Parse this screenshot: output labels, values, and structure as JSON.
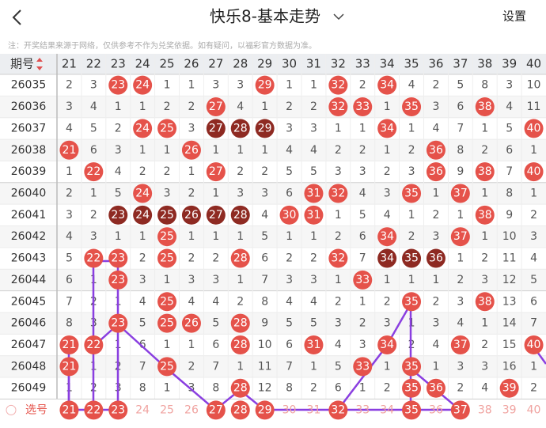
{
  "header": {
    "title": "快乐8-基本走势",
    "settings": "设置"
  },
  "notice": "注：开奖结果来源于网络，仅供参考不作为兑奖依据。如有疑问，以福彩官方数据为准。",
  "table": {
    "corner": "期号",
    "columns": [
      21,
      22,
      23,
      24,
      25,
      26,
      27,
      28,
      29,
      30,
      31,
      32,
      33,
      34,
      35,
      36,
      37,
      38,
      39,
      40
    ],
    "rows": [
      {
        "issue": "26035",
        "cells": [
          2,
          3,
          23,
          24,
          1,
          1,
          3,
          3,
          29,
          1,
          1,
          32,
          2,
          34,
          4,
          2,
          5,
          8,
          3,
          10
        ]
      },
      {
        "issue": "26036",
        "cells": [
          3,
          4,
          1,
          1,
          2,
          2,
          27,
          4,
          1,
          2,
          2,
          32,
          33,
          1,
          35,
          3,
          6,
          38,
          4,
          11
        ]
      },
      {
        "issue": "26037",
        "cells": [
          4,
          5,
          2,
          24,
          25,
          3,
          27,
          28,
          29,
          3,
          3,
          1,
          1,
          34,
          1,
          4,
          7,
          1,
          5,
          40
        ]
      },
      {
        "issue": "26038",
        "cells": [
          21,
          6,
          3,
          1,
          1,
          26,
          1,
          1,
          1,
          4,
          4,
          2,
          2,
          1,
          2,
          36,
          8,
          2,
          6,
          1
        ]
      },
      {
        "issue": "26039",
        "cells": [
          1,
          22,
          4,
          2,
          2,
          1,
          27,
          2,
          2,
          5,
          5,
          3,
          3,
          2,
          3,
          36,
          9,
          38,
          7,
          40
        ]
      },
      {
        "issue": "26040",
        "cells": [
          2,
          1,
          5,
          24,
          3,
          2,
          1,
          3,
          3,
          6,
          31,
          32,
          4,
          3,
          35,
          1,
          37,
          1,
          8,
          1
        ]
      },
      {
        "issue": "26041",
        "cells": [
          3,
          2,
          23,
          24,
          25,
          26,
          27,
          28,
          4,
          30,
          31,
          1,
          5,
          4,
          1,
          2,
          1,
          38,
          9,
          2
        ]
      },
      {
        "issue": "26042",
        "cells": [
          4,
          3,
          1,
          1,
          25,
          1,
          1,
          1,
          5,
          1,
          1,
          2,
          6,
          34,
          2,
          3,
          37,
          1,
          10,
          3
        ]
      },
      {
        "issue": "26043",
        "cells": [
          5,
          22,
          23,
          2,
          25,
          2,
          2,
          28,
          6,
          2,
          2,
          32,
          7,
          34,
          35,
          36,
          1,
          2,
          11,
          4
        ]
      },
      {
        "issue": "26044",
        "cells": [
          6,
          1,
          23,
          3,
          1,
          3,
          3,
          1,
          7,
          3,
          3,
          1,
          33,
          1,
          1,
          1,
          2,
          3,
          12,
          5
        ]
      },
      {
        "issue": "26045",
        "cells": [
          7,
          2,
          1,
          4,
          25,
          4,
          4,
          2,
          8,
          4,
          4,
          2,
          1,
          2,
          35,
          2,
          3,
          38,
          13,
          6
        ]
      },
      {
        "issue": "26046",
        "cells": [
          8,
          3,
          23,
          5,
          25,
          26,
          5,
          28,
          9,
          5,
          5,
          3,
          2,
          3,
          1,
          3,
          4,
          1,
          14,
          7
        ]
      },
      {
        "issue": "26047",
        "cells": [
          21,
          22,
          1,
          6,
          1,
          1,
          6,
          28,
          10,
          6,
          31,
          4,
          3,
          34,
          2,
          4,
          37,
          2,
          15,
          40
        ]
      },
      {
        "issue": "26048",
        "cells": [
          21,
          1,
          2,
          7,
          25,
          2,
          7,
          1,
          11,
          7,
          1,
          5,
          33,
          1,
          35,
          1,
          3,
          3,
          16,
          1
        ]
      },
      {
        "issue": "26049",
        "cells": [
          1,
          2,
          3,
          8,
          1,
          3,
          8,
          28,
          12,
          8,
          2,
          6,
          1,
          2,
          35,
          36,
          2,
          4,
          39,
          2
        ]
      }
    ],
    "footer": {
      "label": "选号",
      "numbers": [
        21,
        22,
        23,
        24,
        25,
        26,
        27,
        28,
        29,
        30,
        31,
        32,
        33,
        34,
        35,
        36,
        37,
        38,
        39,
        40
      ],
      "selected": [
        true,
        true,
        true,
        false,
        false,
        false,
        true,
        true,
        true,
        false,
        false,
        true,
        false,
        false,
        true,
        false,
        true,
        false,
        false,
        false
      ]
    }
  }
}
